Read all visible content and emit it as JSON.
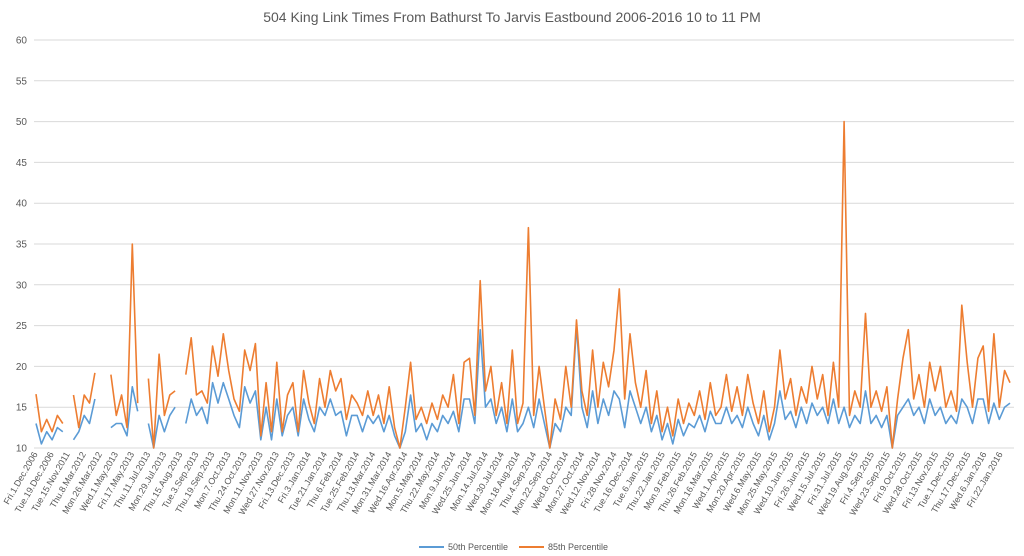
{
  "chart_data": {
    "type": "line",
    "title": "504 King Link Times From Bathurst To Jarvis Eastbound 2006-2016 10 to 11 PM",
    "xlabel": "",
    "ylabel": "",
    "ylim": [
      10,
      60
    ],
    "yticks": [
      10,
      15,
      20,
      25,
      30,
      35,
      40,
      45,
      50,
      55,
      60
    ],
    "grid": true,
    "legend_position": "bottom",
    "x_tick_labels": [
      "Fri.1.Dec.2006",
      "Tue.19.Dec.2006",
      "Tue.15.Nov.2011",
      "Thu.8.Mar.2012",
      "Mon.26.Mar.2012",
      "Wed.1.May.2013",
      "Fri.17.May.2013",
      "Thu.11.Jul.2013",
      "Mon.29.Jul.2013",
      "Thu.15.Aug.2013",
      "Tue.3.Sep.2013",
      "Thu.19.Sep.2013",
      "Mon.7.Oct.2013",
      "Thu.24.Oct.2013",
      "Mon.11.Nov.2013",
      "Wed.27.Nov.2013",
      "Fri.13.Dec.2013",
      "Fri.3.Jan.2014",
      "Tue.21.Jan.2014",
      "Thu.6.Feb.2014",
      "Tue.25.Feb.2014",
      "Thu.13.Mar.2014",
      "Mon.31.Mar.2014",
      "Wed.16.Apr.2014",
      "Mon.5.May.2014",
      "Thu.22.May.2014",
      "Mon.9.Jun.2014",
      "Wed.25.Jun.2014",
      "Mon.14.Jul.2014",
      "Wed.30.Jul.2014",
      "Mon.18.Aug.2014",
      "Thu.4.Sep.2014",
      "Mon.22.Sep.2014",
      "Wed.8.Oct.2014",
      "Mon.27.Oct.2014",
      "Wed.12.Nov.2014",
      "Fri.28.Nov.2014",
      "Tue.16.Dec.2014",
      "Tue.6.Jan.2015",
      "Thu.22.Jan.2015",
      "Mon.9.Feb.2015",
      "Thu.26.Feb.2015",
      "Mon.16.Mar.2015",
      "Wed.1.Apr.2015",
      "Mon.20.Apr.2015",
      "Wed.6.May.2015",
      "Mon.25.May.2015",
      "Wed.10.Jun.2015",
      "Fri.26.Jun.2015",
      "Wed.15.Jul.2015",
      "Fri.31.Jul.2015",
      "Wed.19.Aug.2015",
      "Fri.4.Sep.2015",
      "Wed.23.Sep.2015",
      "Fri.9.Oct.2015",
      "Wed.28.Oct.2015",
      "Fri.13.Nov.2015",
      "Tue.1.Dec.2015",
      "Thu.17.Dec.2015",
      "Wed.6.Jan.2016",
      "Fri.22.Jan.2016"
    ],
    "series": [
      {
        "name": "50th Percentile",
        "color": "#5b9bd5",
        "values": [
          13,
          10.5,
          12,
          11,
          12.5,
          12,
          null,
          11,
          12,
          14,
          13,
          16,
          null,
          null,
          12.5,
          13,
          13,
          11.5,
          17.5,
          14.5,
          null,
          13,
          10,
          14,
          12,
          14,
          15,
          null,
          13,
          16,
          14,
          15,
          13,
          18,
          15.5,
          18,
          16,
          14,
          12.5,
          17.5,
          15.5,
          17,
          11,
          15,
          11,
          16,
          11.5,
          14,
          15,
          11.5,
          16,
          13.5,
          12,
          15,
          14,
          16,
          14,
          14.5,
          11.5,
          14,
          14,
          12,
          14,
          13,
          14,
          12,
          14,
          11.5,
          10,
          12,
          16.5,
          12,
          13,
          11,
          13,
          12,
          14,
          13,
          14.5,
          12,
          16,
          16,
          13,
          24.5,
          15,
          16,
          13,
          15,
          12,
          16,
          12,
          13,
          15,
          12.5,
          16,
          13,
          10,
          13,
          12,
          15,
          14,
          25,
          15,
          12.5,
          17,
          13,
          16,
          14,
          17,
          16,
          12.5,
          17,
          15,
          13,
          15,
          12,
          14,
          11,
          13,
          10.5,
          13.5,
          11.5,
          13,
          12.5,
          14,
          12,
          14.5,
          13,
          13,
          15,
          13,
          14,
          12.5,
          15,
          13,
          11.5,
          14,
          11,
          13,
          17,
          13.5,
          14.5,
          12.5,
          15,
          13,
          15.5,
          14,
          15,
          13,
          16,
          13,
          15,
          12.5,
          14,
          13,
          17,
          13,
          14,
          12.5,
          14,
          10,
          14,
          15,
          16,
          14,
          15,
          13,
          16,
          14,
          15,
          13,
          14,
          13,
          16,
          15,
          13,
          16,
          16,
          13,
          15.5,
          13.5,
          15,
          15.5
        ]
      },
      {
        "name": "85th Percentile",
        "color": "#ed7d31",
        "values": [
          16.6,
          12,
          13.5,
          12,
          14,
          13,
          null,
          16.5,
          12.5,
          16.5,
          15.5,
          19.2,
          null,
          null,
          19,
          14,
          16.5,
          12.5,
          35,
          15.5,
          null,
          18.5,
          10,
          21.5,
          14,
          16.5,
          17,
          null,
          19,
          23.5,
          16.5,
          17,
          15.5,
          22.5,
          18.8,
          24,
          19.5,
          16,
          14.5,
          22,
          19.5,
          22.8,
          11.5,
          18,
          12,
          20.5,
          12,
          16.5,
          18,
          12,
          19.5,
          15.5,
          13,
          18.5,
          15,
          19.5,
          17,
          18.5,
          13.5,
          16.5,
          15.5,
          14,
          17,
          14,
          16.5,
          13,
          17.5,
          12.5,
          10,
          15,
          20.5,
          13.5,
          15,
          13,
          15.5,
          13.5,
          16.5,
          15,
          19,
          13,
          20.5,
          21,
          14,
          30.5,
          17,
          20,
          14,
          18,
          13,
          22,
          13,
          15.5,
          37,
          14,
          20,
          15,
          10,
          16,
          13.5,
          20,
          15,
          25.7,
          17,
          14,
          22,
          15,
          20.5,
          17.5,
          22,
          29.5,
          16,
          24,
          18,
          15,
          19.5,
          13,
          17,
          12,
          15,
          11.5,
          16,
          13,
          15.5,
          14,
          17,
          13.5,
          18,
          14,
          15,
          19,
          14.5,
          17.5,
          14,
          19,
          15.5,
          13,
          17,
          12,
          15,
          22,
          16,
          18.5,
          14,
          17.5,
          15.5,
          20,
          16,
          19,
          14,
          20.5,
          15,
          50,
          14,
          17,
          15,
          26.5,
          15,
          17,
          14.5,
          17.5,
          10,
          16,
          21,
          24.5,
          16,
          19,
          15,
          20.5,
          17,
          20,
          15,
          17,
          14.5,
          27.5,
          20.5,
          15,
          21,
          22.5,
          14.5,
          24,
          15,
          19.5,
          18
        ]
      }
    ]
  }
}
